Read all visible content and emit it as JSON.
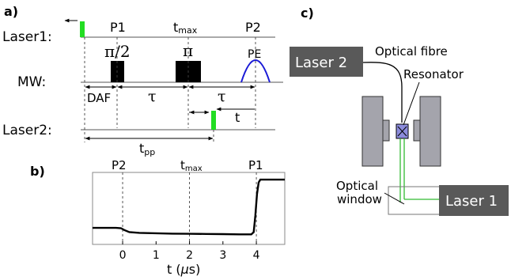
{
  "panels": {
    "a": {
      "label": "a)",
      "row_labels": [
        "Laser1:",
        "MW:",
        "Laser2:"
      ],
      "markers": [
        "P1",
        "t",
        "max",
        "P2"
      ],
      "pulses": [
        "π/2",
        "π",
        "PE"
      ],
      "intervals": [
        "DAF",
        "τ",
        "τ",
        "t",
        "t",
        "pp"
      ]
    },
    "b": {
      "label": "b)",
      "markers": [
        "P2",
        "t",
        "max",
        "P1"
      ],
      "xlabel": "t (",
      "xlabel_mu": "μ",
      "xlabel_unit": "s)",
      "x_ticks": [
        "0",
        "1",
        "2",
        "3",
        "4"
      ]
    },
    "c": {
      "label": "c)",
      "laser2_label": "Laser 2",
      "laser1_label": "Laser 1",
      "fibre_label": "Optical fibre",
      "resonator_label": "Resonator",
      "window_label_1": "Optical",
      "window_label_2": "window"
    }
  },
  "colors": {
    "laser_pulse": "#22dd22",
    "pulse_echo": "#1a1ad6",
    "laser_box": "#595959",
    "magnet": "#a4a4ac",
    "resonator": "#8c8cdc",
    "beam": "#33bb33"
  },
  "chart_data": {
    "type": "line",
    "title": "",
    "xlabel": "t (μs)",
    "ylabel": "",
    "xlim": [
      -0.9,
      4.85
    ],
    "ylim": [
      0,
      1
    ],
    "x_ticks": [
      0,
      1,
      2,
      3,
      4
    ],
    "grid": false,
    "vertical_markers": [
      {
        "x": 0,
        "label": "P2"
      },
      {
        "x": 2,
        "label": "tmax"
      },
      {
        "x": 4,
        "label": "P1"
      }
    ],
    "series": [
      {
        "values": [
          [
            -0.9,
            0.23
          ],
          [
            -0.5,
            0.23
          ],
          [
            -0.2,
            0.23
          ],
          [
            -0.05,
            0.225
          ],
          [
            0.05,
            0.2
          ],
          [
            0.2,
            0.17
          ],
          [
            0.5,
            0.16
          ],
          [
            1.0,
            0.155
          ],
          [
            1.5,
            0.15
          ],
          [
            2.0,
            0.147
          ],
          [
            2.5,
            0.145
          ],
          [
            3.0,
            0.143
          ],
          [
            3.5,
            0.14
          ],
          [
            3.85,
            0.14
          ],
          [
            3.92,
            0.17
          ],
          [
            3.97,
            0.4
          ],
          [
            4.02,
            0.7
          ],
          [
            4.07,
            0.86
          ],
          [
            4.12,
            0.9
          ],
          [
            4.3,
            0.9
          ],
          [
            4.6,
            0.9
          ],
          [
            4.85,
            0.9
          ]
        ]
      }
    ]
  }
}
